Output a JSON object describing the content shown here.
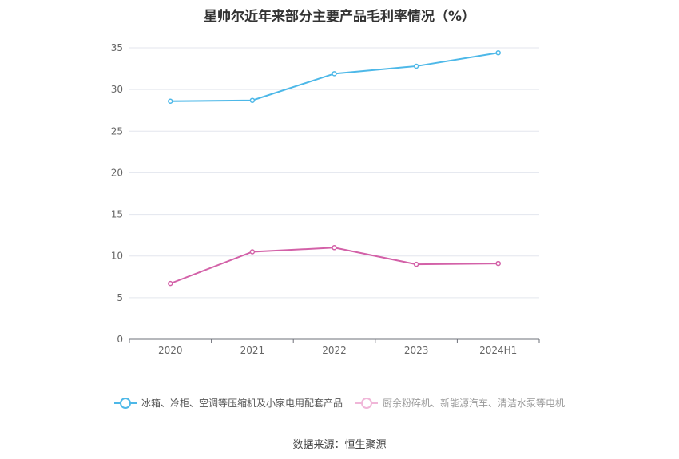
{
  "chart_data": {
    "type": "line",
    "title": "星帅尔近年来部分主要产品毛利率情况（%）",
    "categories": [
      "2020",
      "2021",
      "2022",
      "2023",
      "2024H1"
    ],
    "ylim": [
      0,
      35
    ],
    "yticks": [
      0,
      5,
      10,
      15,
      20,
      25,
      30,
      35
    ],
    "grid": true,
    "legend_position": "bottom",
    "series": [
      {
        "name": "冰箱、冷柜、空调等压缩机及小家电用配套产品",
        "color": "#4db8e8",
        "values": [
          28.6,
          28.7,
          31.9,
          32.8,
          34.4
        ]
      },
      {
        "name": "厨余粉碎机、新能源汽车、清洁水泵等电机",
        "color": "#d361a8",
        "values": [
          6.7,
          10.5,
          11.0,
          9.0,
          9.1
        ]
      }
    ]
  },
  "source": "数据来源：恒生聚源"
}
